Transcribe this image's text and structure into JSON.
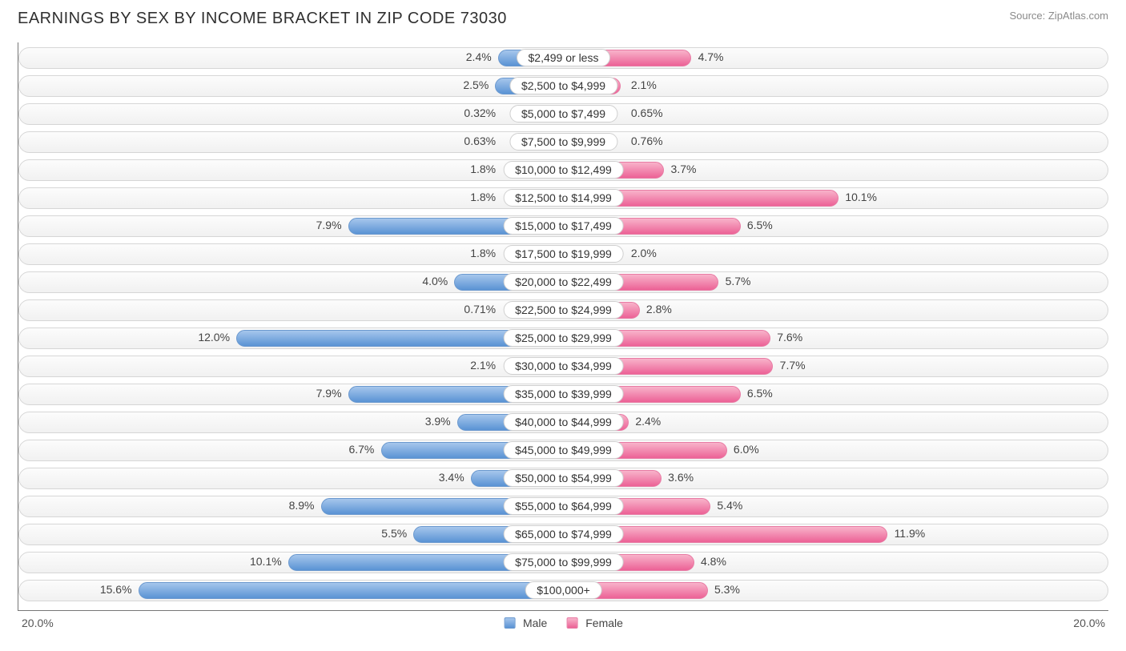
{
  "title": "EARNINGS BY SEX BY INCOME BRACKET IN ZIP CODE 73030",
  "source": "Source: ZipAtlas.com",
  "chart": {
    "type": "diverging-bar",
    "axis_max": 20.0,
    "axis_label_left": "20.0%",
    "axis_label_right": "20.0%",
    "legend": {
      "male": "Male",
      "female": "Female"
    },
    "male_color": "#6fa1db",
    "female_color": "#ee7ba6",
    "track_border": "#d6d6d6",
    "track_bg_top": "#fcfcfc",
    "track_bg_bottom": "#f1f1f1",
    "center_pill_half_pct": 5.6,
    "label_gap_pct": 0.6,
    "rows": [
      {
        "label": "$2,499 or less",
        "male": 2.4,
        "male_text": "2.4%",
        "female": 4.7,
        "female_text": "4.7%"
      },
      {
        "label": "$2,500 to $4,999",
        "male": 2.5,
        "male_text": "2.5%",
        "female": 2.1,
        "female_text": "2.1%"
      },
      {
        "label": "$5,000 to $7,499",
        "male": 0.32,
        "male_text": "0.32%",
        "female": 0.65,
        "female_text": "0.65%"
      },
      {
        "label": "$7,500 to $9,999",
        "male": 0.63,
        "male_text": "0.63%",
        "female": 0.76,
        "female_text": "0.76%"
      },
      {
        "label": "$10,000 to $12,499",
        "male": 1.8,
        "male_text": "1.8%",
        "female": 3.7,
        "female_text": "3.7%"
      },
      {
        "label": "$12,500 to $14,999",
        "male": 1.8,
        "male_text": "1.8%",
        "female": 10.1,
        "female_text": "10.1%"
      },
      {
        "label": "$15,000 to $17,499",
        "male": 7.9,
        "male_text": "7.9%",
        "female": 6.5,
        "female_text": "6.5%"
      },
      {
        "label": "$17,500 to $19,999",
        "male": 1.8,
        "male_text": "1.8%",
        "female": 2.0,
        "female_text": "2.0%"
      },
      {
        "label": "$20,000 to $22,499",
        "male": 4.0,
        "male_text": "4.0%",
        "female": 5.7,
        "female_text": "5.7%"
      },
      {
        "label": "$22,500 to $24,999",
        "male": 0.71,
        "male_text": "0.71%",
        "female": 2.8,
        "female_text": "2.8%"
      },
      {
        "label": "$25,000 to $29,999",
        "male": 12.0,
        "male_text": "12.0%",
        "female": 7.6,
        "female_text": "7.6%"
      },
      {
        "label": "$30,000 to $34,999",
        "male": 2.1,
        "male_text": "2.1%",
        "female": 7.7,
        "female_text": "7.7%"
      },
      {
        "label": "$35,000 to $39,999",
        "male": 7.9,
        "male_text": "7.9%",
        "female": 6.5,
        "female_text": "6.5%"
      },
      {
        "label": "$40,000 to $44,999",
        "male": 3.9,
        "male_text": "3.9%",
        "female": 2.4,
        "female_text": "2.4%"
      },
      {
        "label": "$45,000 to $49,999",
        "male": 6.7,
        "male_text": "6.7%",
        "female": 6.0,
        "female_text": "6.0%"
      },
      {
        "label": "$50,000 to $54,999",
        "male": 3.4,
        "male_text": "3.4%",
        "female": 3.6,
        "female_text": "3.6%"
      },
      {
        "label": "$55,000 to $64,999",
        "male": 8.9,
        "male_text": "8.9%",
        "female": 5.4,
        "female_text": "5.4%"
      },
      {
        "label": "$65,000 to $74,999",
        "male": 5.5,
        "male_text": "5.5%",
        "female": 11.9,
        "female_text": "11.9%"
      },
      {
        "label": "$75,000 to $99,999",
        "male": 10.1,
        "male_text": "10.1%",
        "female": 4.8,
        "female_text": "4.8%"
      },
      {
        "label": "$100,000+",
        "male": 15.6,
        "male_text": "15.6%",
        "female": 5.3,
        "female_text": "5.3%"
      }
    ]
  }
}
